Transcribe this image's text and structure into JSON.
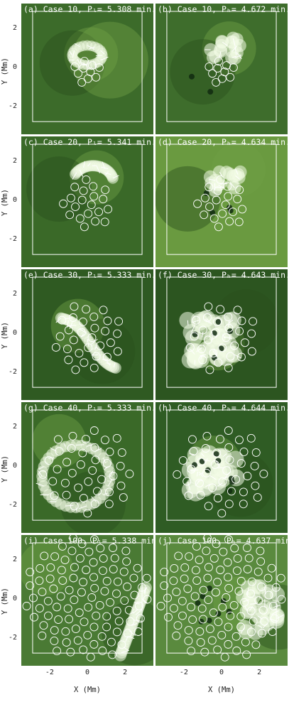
{
  "x_axis": {
    "label": "X (Mm)",
    "ticks": [
      "-2",
      "0",
      "2"
    ],
    "tick_values": [
      -2,
      0,
      2
    ]
  },
  "y_axis": {
    "label": "Y (Mm)",
    "ticks": [
      "2",
      "0",
      "-2"
    ],
    "tick_values": [
      2,
      0,
      -2
    ]
  },
  "panels": [
    {
      "title": "(a) Case 10, Pₗ= 5.308 min.",
      "bg": "#3c6b2a",
      "flux": [
        [
          0.2,
          0.6
        ],
        [
          -0.8,
          0.15
        ],
        [
          1.2,
          0.3
        ]
      ],
      "ring_count": 10,
      "ring_radius": 0.7,
      "bright": "ring"
    },
    {
      "title": "(b) Case 10, Pₕ= 4.672 min.",
      "bg": "#3e6d2c",
      "flux": [
        [
          0.4,
          0.9
        ],
        [
          -1.0,
          -0.3
        ]
      ],
      "ring_count": 10,
      "ring_radius": 0.7,
      "bright": "blob"
    },
    {
      "title": "(c) Case 20, Pₗ= 5.341 min.",
      "bg": "#3a6928",
      "flux": [
        [
          0.5,
          1.1
        ],
        [
          -1.5,
          0.5
        ]
      ],
      "ring_count": 20,
      "ring_radius": 1.3,
      "bright": "arc"
    },
    {
      "title": "(d) Case 20, Pₕ= 4.634 min.",
      "bg": "#6a9a40",
      "flux": [
        [
          0.9,
          1.5
        ],
        [
          -1.8,
          0.0
        ]
      ],
      "ring_count": 20,
      "ring_radius": 1.3,
      "bright": "blob"
    },
    {
      "title": "(e) Case 30, Pₗ= 5.333 min.",
      "bg": "#2f5a22",
      "flux": [
        [
          -0.5,
          0.3
        ],
        [
          0.8,
          -1.0
        ]
      ],
      "ring_count": 30,
      "ring_radius": 1.8,
      "bright": "band"
    },
    {
      "title": "(f) Case 30, Pₕ= 4.643 min.",
      "bg": "#2c5520",
      "flux": [
        [
          -0.2,
          -0.6
        ],
        [
          1.3,
          0.5
        ]
      ],
      "ring_count": 30,
      "ring_radius": 1.8,
      "bright": "patch"
    },
    {
      "title": "(g) Case 40, Pₗ= 5.333 min.",
      "bg": "#3a6928",
      "flux": [
        [
          -1.5,
          1.2
        ],
        [
          0.3,
          -2.0
        ]
      ],
      "ring_count": 40,
      "ring_radius": 2.3,
      "bright": "loop"
    },
    {
      "title": "(h) Case 40, Pₕ= 4.644 min.",
      "bg": "#2f5c24",
      "flux": [
        [
          -0.4,
          0.1
        ],
        [
          1.0,
          -1.0
        ]
      ],
      "ring_count": 40,
      "ring_radius": 2.3,
      "bright": "patch"
    },
    {
      "title": "(i) Case 100, Pₗ= 5.338 min.",
      "bg": "#4a7a34",
      "flux": [
        [
          -2.2,
          1.5
        ],
        [
          2.5,
          -1.8
        ]
      ],
      "ring_count": 100,
      "ring_radius": 3.2,
      "bright": "edge"
    },
    {
      "title": "(j) Case 100, Pₕ= 4.637 min.",
      "bg": "#5a8a3e",
      "flux": [
        [
          1.0,
          -0.3
        ],
        [
          3.0,
          -1.0
        ]
      ],
      "ring_count": 100,
      "ring_radius": 3.2,
      "bright": "edge2"
    }
  ],
  "colors": {
    "ring": "#ffffff",
    "arrow": "#ffffff",
    "frame": "#ffffff",
    "dark_spot": "#102a10",
    "bright": "#f2fbe6"
  }
}
